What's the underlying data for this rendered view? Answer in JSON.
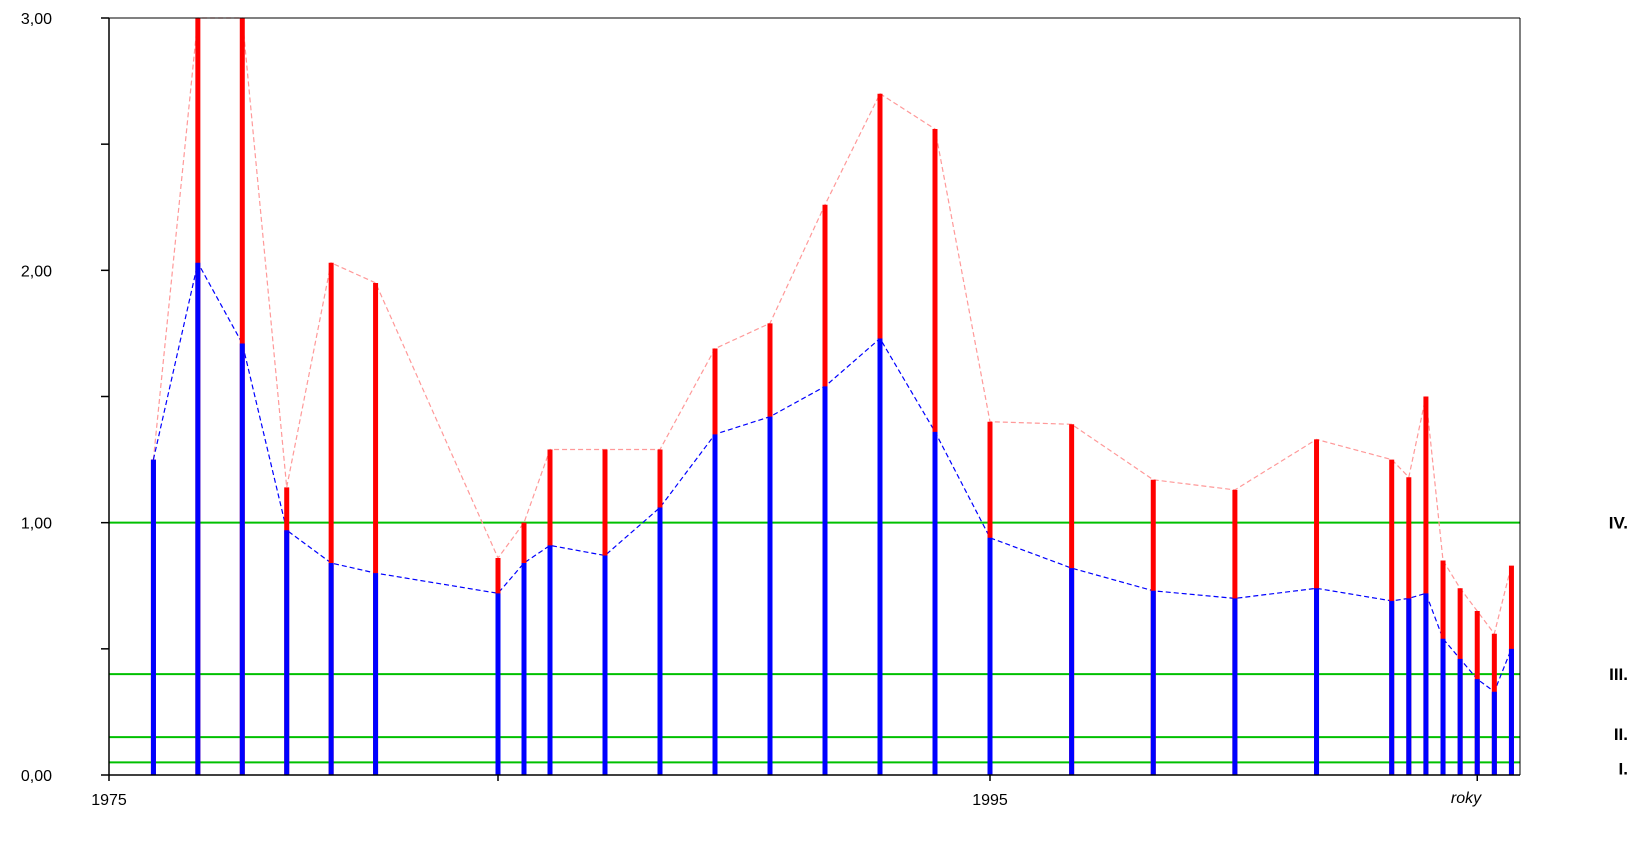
{
  "chart_data": {
    "type": "bar",
    "title": "",
    "xlabel": "roky",
    "ylabel": "",
    "xlim": [
      1975,
      1982,
      1987,
      1995,
      1999.9,
      2007.5
    ],
    "ylim": [
      0,
      3
    ],
    "y_ticks": [
      0,
      0.5,
      1,
      1.5,
      2,
      2.5,
      3
    ],
    "y_tick_labels": [
      "0,00",
      "",
      "1,00",
      "",
      "2,00",
      "",
      "3,00"
    ],
    "x_ticks": [
      1975,
      1985,
      1995,
      2005
    ],
    "x_tick_labels": [
      "1975",
      "",
      "1995",
      ""
    ],
    "grid": false,
    "legend": "none",
    "x": [
      1976,
      1977,
      1978,
      1979,
      1980,
      1981,
      1985,
      1986,
      1987,
      1988,
      1989,
      1990,
      1991,
      1992,
      1993,
      1994,
      1995,
      1996,
      1997,
      1998,
      1999,
      2000,
      2001,
      2002,
      2003,
      2004,
      2005,
      2006,
      2007
    ],
    "series": [
      {
        "color": "#0000ff",
        "values": [
          1.25,
          2.03,
          1.71,
          0.97,
          0.84,
          0.8,
          0.72,
          0.84,
          0.91,
          0.87,
          1.06,
          1.35,
          1.42,
          1.54,
          1.73,
          1.36,
          0.94,
          0.82,
          0.73,
          0.7,
          0.74,
          0.69,
          0.7,
          0.72,
          0.54,
          0.46,
          0.38,
          0.33,
          0.5
        ]
      },
      {
        "color": "#ff0000",
        "values": [
          1.25,
          3.0,
          3.0,
          1.14,
          2.03,
          1.95,
          0.86,
          1.0,
          1.29,
          1.29,
          1.29,
          1.69,
          1.79,
          2.26,
          2.7,
          2.56,
          1.4,
          1.39,
          1.17,
          1.13,
          1.33,
          1.25,
          1.18,
          1.5,
          0.85,
          0.74,
          0.65,
          0.56,
          0.83
        ]
      }
    ],
    "reference_lines": [
      {
        "label": "IV.",
        "value": 1.0
      },
      {
        "label": "III.",
        "value": 0.4
      },
      {
        "label": "II.",
        "value": 0.15
      },
      {
        "label": "I.",
        "value": 0.05
      }
    ],
    "colors": {
      "lower_bar": "#0000ff",
      "upper_bar": "#ff0000",
      "lower_line": "#0000ff",
      "upper_line": "#ff9999",
      "reference": "#00c000",
      "axis": "#000000"
    }
  }
}
